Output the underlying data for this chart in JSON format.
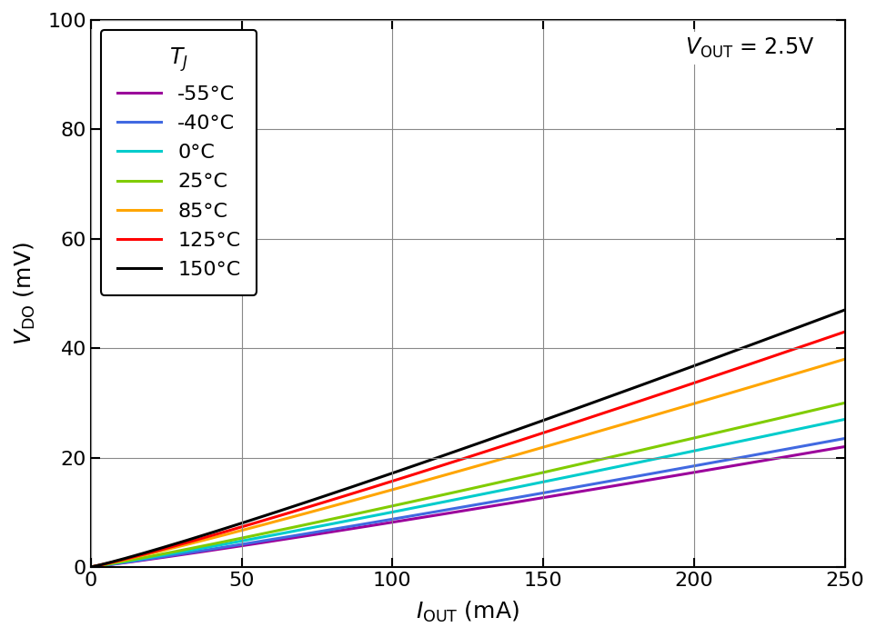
{
  "xlabel": "I$_\\mathrm{OUT}$ (mA)",
  "ylabel": "V$_\\mathrm{DO}$ (mV)",
  "annotation_line1": "V$_\\mathrm{OUT}$ = 2.5V",
  "legend_title": "T$_J$",
  "xlim": [
    0,
    250
  ],
  "ylim": [
    0,
    100
  ],
  "xticks": [
    0,
    50,
    100,
    150,
    200,
    250
  ],
  "yticks": [
    0,
    20,
    40,
    60,
    80,
    100
  ],
  "curves": [
    {
      "label": "-55°C",
      "color": "#9B009B",
      "end_value": 22.0,
      "exponent": 1.08
    },
    {
      "label": "-40°C",
      "color": "#4169E1",
      "end_value": 23.5,
      "exponent": 1.08
    },
    {
      "label": "0°C",
      "color": "#00CCCC",
      "end_value": 27.0,
      "exponent": 1.08
    },
    {
      "label": "25°C",
      "color": "#80CC00",
      "end_value": 30.0,
      "exponent": 1.08
    },
    {
      "label": "85°C",
      "color": "#FFA500",
      "end_value": 38.0,
      "exponent": 1.08
    },
    {
      "label": "125°C",
      "color": "#FF0000",
      "end_value": 43.0,
      "exponent": 1.1
    },
    {
      "label": "150°C",
      "color": "#000000",
      "end_value": 47.0,
      "exponent": 1.1
    }
  ],
  "background_color": "#ffffff",
  "grid_color": "#888888",
  "figsize": [
    9.64,
    7.01
  ],
  "dpi": 100
}
